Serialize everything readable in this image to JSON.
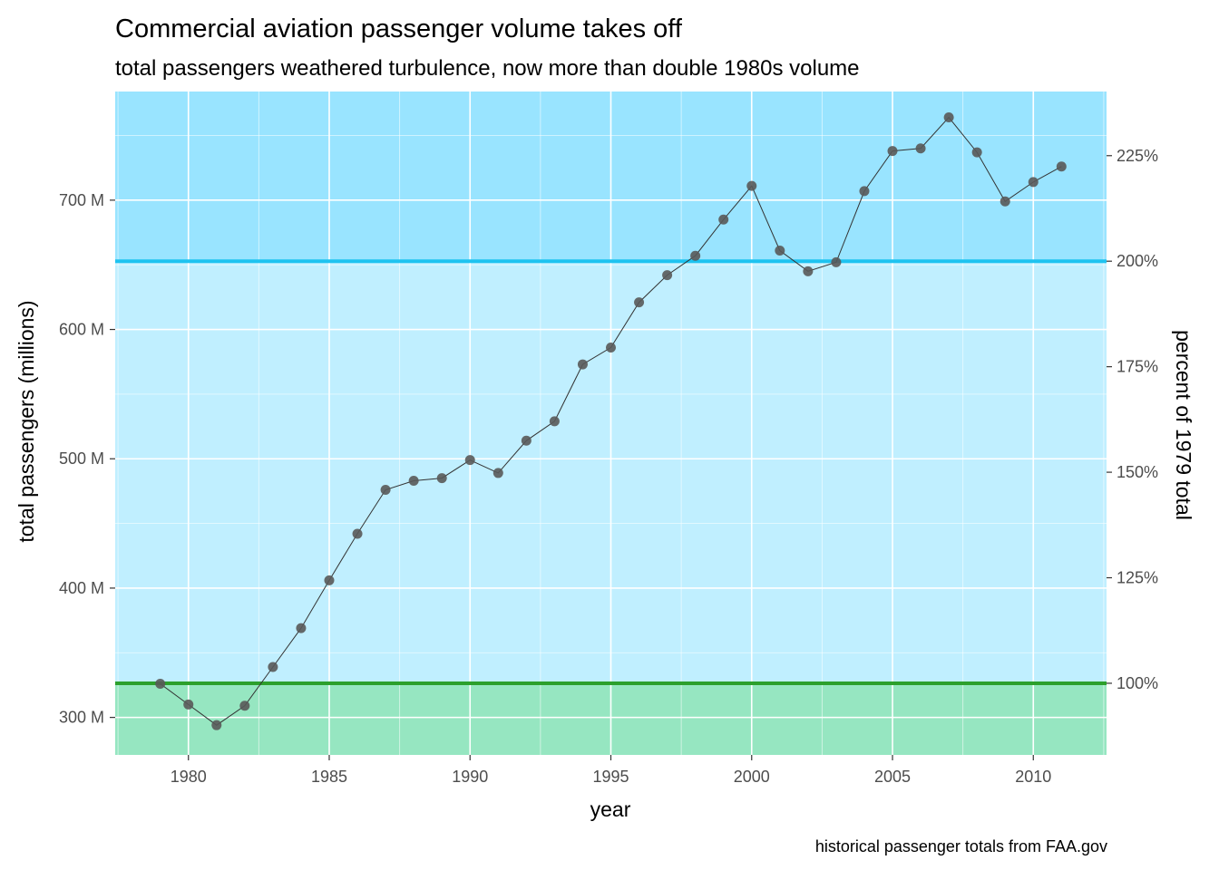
{
  "chart_data": {
    "type": "line",
    "title": "Commercial aviation passenger volume takes off",
    "subtitle": "total passengers weathered turbulence, now more than double 1980s volume",
    "caption": "historical passenger totals from FAA.gov",
    "xlabel": "year",
    "ylabel": "total passengers (millions)",
    "y2label": "percent of 1979 total",
    "xlim": [
      1977.4,
      2012.6
    ],
    "ylim": [
      271,
      784
    ],
    "x_ticks": [
      1980,
      1985,
      1990,
      1995,
      2000,
      2005,
      2010
    ],
    "x_tick_labels": [
      "1980",
      "1985",
      "1990",
      "1995",
      "2000",
      "2005",
      "2010"
    ],
    "y_ticks": [
      300,
      400,
      500,
      600,
      700
    ],
    "y_tick_labels": [
      "300 M",
      "400 M",
      "500 M",
      "600 M",
      "700 M"
    ],
    "y2_tick_values": [
      326.4,
      408.0,
      489.6,
      571.2,
      652.8,
      734.4
    ],
    "y2_tick_labels": [
      "100%",
      "125%",
      "150%",
      "175%",
      "200%",
      "225%"
    ],
    "grid": true,
    "bands": [
      {
        "from": 271,
        "to": 326.4,
        "color": "#96e6c1"
      },
      {
        "from": 326.4,
        "to": 652.8,
        "color": "#c0efff"
      },
      {
        "from": 652.8,
        "to": 784,
        "color": "#99e4ff"
      }
    ],
    "reference_lines": [
      {
        "y": 326.4,
        "color": "#2ca02c"
      },
      {
        "y": 652.8,
        "color": "#1ec3f0"
      }
    ],
    "series": [
      {
        "x": [
          1979,
          1980,
          1981,
          1982,
          1983,
          1984,
          1985,
          1986,
          1987,
          1988,
          1989,
          1990,
          1991,
          1992,
          1993,
          1994,
          1995,
          1996,
          1997,
          1998,
          1999,
          2000,
          2001,
          2002,
          2003,
          2004,
          2005,
          2006,
          2007,
          2008,
          2009,
          2010,
          2011
        ],
        "values": [
          326,
          310,
          294,
          309,
          339,
          369,
          406,
          442,
          476,
          483,
          485,
          499,
          489,
          514,
          529,
          573,
          586,
          621,
          642,
          657,
          685,
          711,
          661,
          645,
          652,
          707,
          738,
          740,
          764,
          737,
          699,
          714,
          726
        ],
        "color": "#595959"
      }
    ]
  }
}
